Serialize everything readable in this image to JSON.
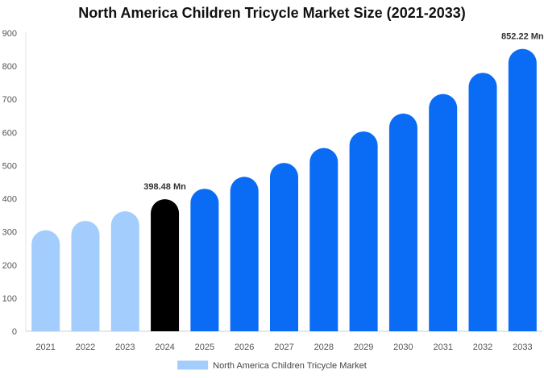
{
  "chart_data": {
    "type": "bar",
    "title": "North America Children Tricycle Market Size (2021-2033)",
    "xlabel": "",
    "ylabel": "",
    "categories": [
      "2021",
      "2022",
      "2023",
      "2024",
      "2025",
      "2026",
      "2027",
      "2028",
      "2029",
      "2030",
      "2031",
      "2032",
      "2033"
    ],
    "series": [
      {
        "name": "North America Children Tricycle Market",
        "values": [
          305,
          333,
          362,
          398.48,
          430,
          466,
          508,
          553,
          603,
          657,
          716,
          780,
          852.22
        ]
      }
    ],
    "data_labels": [
      {
        "category": "2024",
        "text": "398.48 Mn"
      },
      {
        "category": "2033",
        "text": "852.22 Mn"
      }
    ],
    "ylim": [
      0,
      900
    ],
    "yticks": [
      0,
      100,
      200,
      300,
      400,
      500,
      600,
      700,
      800,
      900
    ],
    "grid": false,
    "legend_placement": "bottom",
    "colors": {
      "historical": "#a2cdfc",
      "base_year": "#000000",
      "forecast": "#0a6cf5",
      "legend_swatch": "#a2cdfc"
    },
    "bar_color_groups": [
      "historical",
      "historical",
      "historical",
      "base_year",
      "forecast",
      "forecast",
      "forecast",
      "forecast",
      "forecast",
      "forecast",
      "forecast",
      "forecast",
      "forecast"
    ]
  }
}
